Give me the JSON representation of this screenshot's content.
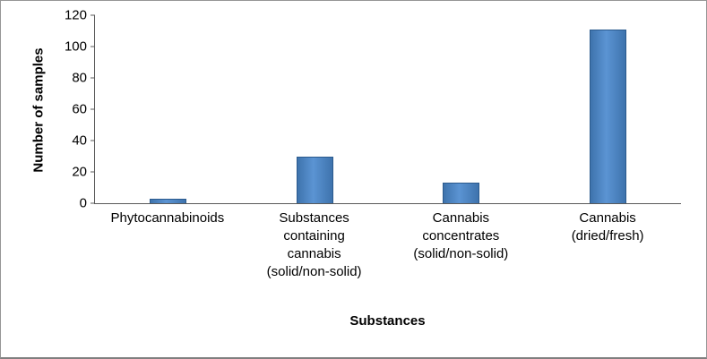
{
  "chart_data": {
    "type": "bar",
    "title": "",
    "xlabel": "Substances",
    "ylabel": "Number of samples",
    "categories": [
      "Phytocannabinoids",
      "Substances\ncontaining\ncannabis\n(solid/non-solid)",
      "Cannabis\nconcentrates\n(solid/non-solid)",
      "Cannabis\n(dried/fresh)"
    ],
    "values": [
      3,
      30,
      13,
      111
    ],
    "ylim": [
      0,
      120
    ],
    "yticks": [
      0,
      20,
      40,
      60,
      80,
      100,
      120
    ],
    "grid": false,
    "legend_position": "none",
    "bar_color": "#4F81BD",
    "bar_border_color": "#2B5A8D",
    "axis_color": "#595959"
  }
}
